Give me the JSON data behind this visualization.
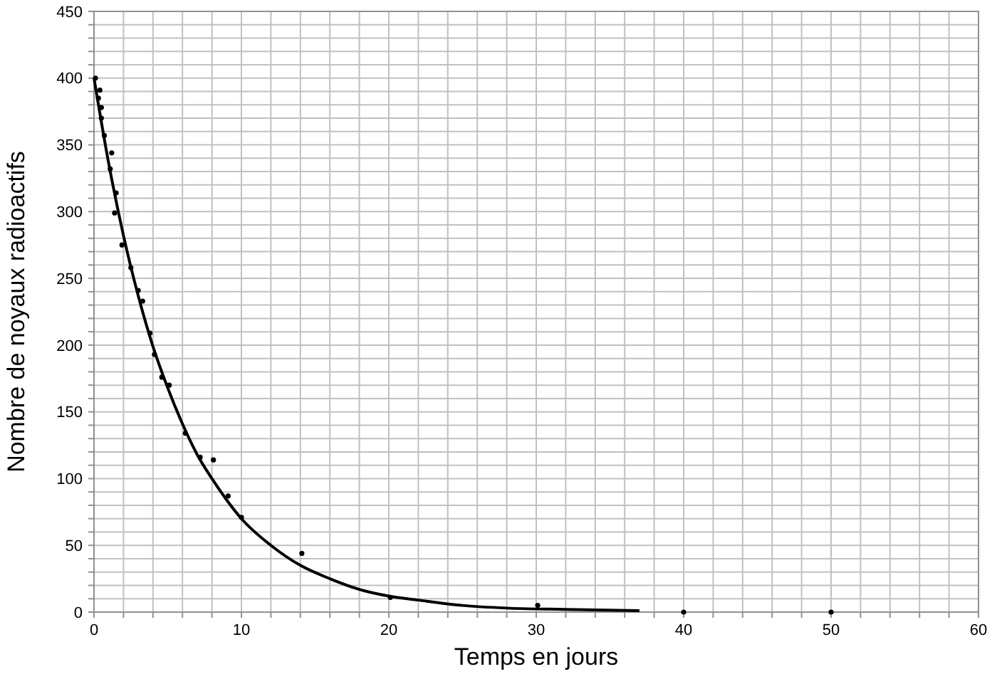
{
  "chart_data": {
    "type": "scatter",
    "xlabel": "Temps en jours",
    "ylabel": "Nombre de noyaux radioactifs",
    "xlim": [
      0,
      60
    ],
    "ylim": [
      0,
      450
    ],
    "grid": true,
    "marker": "circle",
    "xticks": [
      0,
      {
        "value": 2,
        "label": null
      },
      {
        "value": 4,
        "label": null
      },
      {
        "value": 6,
        "label": null
      },
      {
        "value": 8,
        "label": null
      },
      10,
      {
        "value": 12,
        "label": null
      },
      {
        "value": 14,
        "label": null
      },
      {
        "value": 16,
        "label": null
      },
      {
        "value": 18,
        "label": null
      },
      20,
      {
        "value": 22,
        "label": null
      },
      {
        "value": 24,
        "label": null
      },
      {
        "value": 26,
        "label": null
      },
      {
        "value": 28,
        "label": null
      },
      30,
      {
        "value": 32,
        "label": null
      },
      {
        "value": 34,
        "label": null
      },
      {
        "value": 36,
        "label": null
      },
      {
        "value": 38,
        "label": null
      },
      40,
      {
        "value": 42,
        "label": null
      },
      {
        "value": 44,
        "label": null
      },
      {
        "value": 46,
        "label": null
      },
      {
        "value": 48,
        "label": null
      },
      50,
      {
        "value": 52,
        "label": null
      },
      {
        "value": 54,
        "label": null
      },
      {
        "value": 56,
        "label": null
      },
      {
        "value": 58,
        "label": null
      },
      60
    ],
    "yticks": [
      0,
      {
        "value": 10,
        "label": null
      },
      {
        "value": 20,
        "label": null
      },
      {
        "value": 30,
        "label": null
      },
      {
        "value": 40,
        "label": null
      },
      50,
      {
        "value": 60,
        "label": null
      },
      {
        "value": 70,
        "label": null
      },
      {
        "value": 80,
        "label": null
      },
      {
        "value": 90,
        "label": null
      },
      100,
      {
        "value": 110,
        "label": null
      },
      {
        "value": 120,
        "label": null
      },
      {
        "value": 130,
        "label": null
      },
      {
        "value": 140,
        "label": null
      },
      150,
      {
        "value": 160,
        "label": null
      },
      {
        "value": 170,
        "label": null
      },
      {
        "value": 180,
        "label": null
      },
      {
        "value": 190,
        "label": null
      },
      200,
      {
        "value": 210,
        "label": null
      },
      {
        "value": 220,
        "label": null
      },
      {
        "value": 230,
        "label": null
      },
      {
        "value": 240,
        "label": null
      },
      250,
      {
        "value": 260,
        "label": null
      },
      {
        "value": 270,
        "label": null
      },
      {
        "value": 280,
        "label": null
      },
      {
        "value": 290,
        "label": null
      },
      300,
      {
        "value": 310,
        "label": null
      },
      {
        "value": 320,
        "label": null
      },
      {
        "value": 330,
        "label": null
      },
      {
        "value": 340,
        "label": null
      },
      350,
      {
        "value": 360,
        "label": null
      },
      {
        "value": 370,
        "label": null
      },
      {
        "value": 380,
        "label": null
      },
      {
        "value": 390,
        "label": null
      },
      400,
      {
        "value": 410,
        "label": null
      },
      {
        "value": 420,
        "label": null
      },
      {
        "value": 430,
        "label": null
      },
      {
        "value": 440,
        "label": null
      },
      450
    ],
    "series": [
      {
        "color": "#000000",
        "x": [
          0.1,
          0.4,
          0.3,
          0.5,
          0.5,
          0.7,
          1.2,
          1.1,
          1.5,
          1.4,
          1.9,
          2.5,
          3.0,
          3.3,
          3.8,
          4.1,
          4.6,
          5.1,
          6.2,
          7.2,
          8.1,
          9.1,
          10,
          14.1,
          20.1,
          30.1,
          40,
          50
        ],
        "values": [
          400,
          391,
          385,
          378,
          370,
          357,
          344,
          332,
          314,
          299,
          275,
          258,
          241,
          233,
          209,
          193,
          176,
          170,
          134,
          116,
          114,
          87,
          71,
          44,
          11,
          5,
          0,
          0
        ]
      },
      {
        "type": "line",
        "color": "#000000",
        "marker": "none",
        "x": [
          0,
          1,
          2,
          3,
          4,
          5,
          6,
          7,
          8,
          9,
          10,
          12,
          14,
          16,
          18,
          20,
          22,
          25,
          28,
          32,
          37
        ],
        "values": [
          400,
          336,
          282,
          237,
          199,
          168,
          141,
          118,
          100,
          84,
          70,
          50,
          35,
          25,
          17,
          12,
          9,
          5,
          3,
          2,
          1
        ]
      }
    ]
  }
}
